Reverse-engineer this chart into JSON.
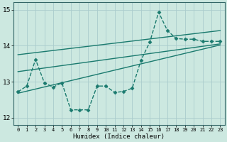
{
  "background_color": "#cce8e0",
  "grid_color": "#aacccc",
  "line_color": "#1a7a6e",
  "xlabel": "Humidex (Indice chaleur)",
  "xlim": [
    -0.5,
    23.5
  ],
  "ylim": [
    11.8,
    15.2
  ],
  "yticks": [
    12,
    13,
    14,
    15
  ],
  "xticks": [
    0,
    1,
    2,
    3,
    4,
    5,
    6,
    7,
    8,
    9,
    10,
    11,
    12,
    13,
    14,
    15,
    16,
    17,
    18,
    19,
    20,
    21,
    22,
    23
  ],
  "series": [
    {
      "x": [
        0,
        1,
        2,
        3,
        4,
        5,
        6,
        7,
        8,
        9,
        10,
        11,
        12,
        13,
        14,
        15,
        16,
        17,
        18,
        19,
        20,
        21,
        22,
        23
      ],
      "y": [
        12.72,
        12.88,
        13.62,
        12.97,
        12.85,
        12.97,
        12.22,
        12.22,
        12.22,
        12.88,
        12.88,
        12.7,
        12.73,
        12.82,
        13.6,
        14.1,
        14.93,
        14.42,
        14.2,
        14.18,
        14.18,
        14.12,
        14.12,
        14.12
      ],
      "marker": "D",
      "markersize": 2.5,
      "linewidth": 1.0,
      "linestyle": "--"
    },
    {
      "x": [
        0,
        23
      ],
      "y": [
        13.75,
        14.42
      ],
      "marker": null,
      "linewidth": 1.0,
      "linestyle": "-"
    },
    {
      "x": [
        0,
        23
      ],
      "y": [
        13.28,
        14.05
      ],
      "marker": null,
      "linewidth": 1.0,
      "linestyle": "-"
    },
    {
      "x": [
        0,
        23
      ],
      "y": [
        12.68,
        14.02
      ],
      "marker": null,
      "linewidth": 1.0,
      "linestyle": "-"
    }
  ]
}
